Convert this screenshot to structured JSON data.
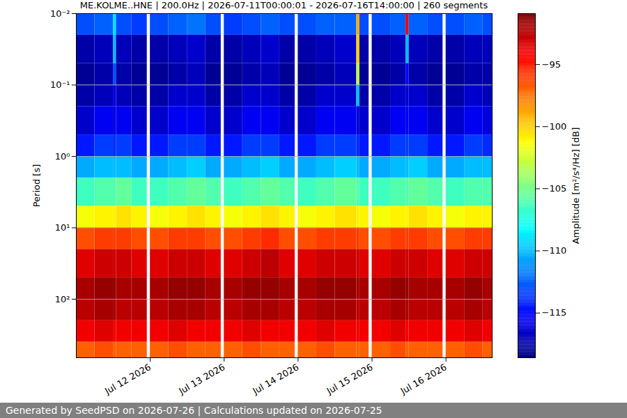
{
  "chart_data": {
    "type": "heatmap",
    "title": "ME.KOLME..HNE | 200.0Hz | 2026-07-11T00:00:01 - 2026-07-16T14:00:00 | 260 segments",
    "ylabel": "Period [s]",
    "x_edges": [
      "2026-07-11T00:00",
      "2026-07-11T06:00",
      "2026-07-11T12:00",
      "2026-07-11T13:00",
      "2026-07-11T18:00",
      "2026-07-11T23:00",
      "2026-07-12T00:00",
      "2026-07-12T06:00",
      "2026-07-12T12:00",
      "2026-07-12T18:00",
      "2026-07-12T23:00",
      "2026-07-13T00:00",
      "2026-07-13T06:00",
      "2026-07-13T12:00",
      "2026-07-13T18:00",
      "2026-07-13T23:00",
      "2026-07-14T00:00",
      "2026-07-14T06:00",
      "2026-07-14T12:00",
      "2026-07-14T19:00",
      "2026-07-14T20:00",
      "2026-07-14T23:00",
      "2026-07-15T00:00",
      "2026-07-15T06:00",
      "2026-07-15T11:00",
      "2026-07-15T12:00",
      "2026-07-15T18:00",
      "2026-07-15T23:00",
      "2026-07-16T00:00",
      "2026-07-16T06:00",
      "2026-07-16T12:00",
      "2026-07-16T15:00"
    ],
    "y_edges": [
      0.01,
      0.02,
      0.05,
      0.1,
      0.2,
      0.5,
      1,
      2,
      5,
      10,
      20,
      50,
      100,
      200,
      400,
      660
    ],
    "z": [
      [
        -113,
        -112.5,
        -109,
        -113,
        -113.5,
        null,
        -113,
        -112.5,
        -112,
        -113,
        null,
        -113.5,
        -113,
        -112.5,
        -113,
        null,
        -113,
        -112.5,
        -112.5,
        -99,
        -113,
        null,
        -113,
        -112.5,
        -94,
        -112.5,
        -113,
        null,
        -113,
        -112.5,
        -113
      ],
      [
        -117.5,
        -117,
        -110,
        -117,
        -117.5,
        null,
        -117.5,
        -117,
        -116.5,
        -117.5,
        null,
        -117.5,
        -117,
        -116.5,
        -117.5,
        null,
        -117.5,
        -117,
        -116.5,
        -100,
        -117.5,
        null,
        -117.5,
        -117,
        -110,
        -117,
        -117.5,
        null,
        -117.5,
        -117,
        -117
      ],
      [
        -118,
        -117.5,
        -113,
        -117.5,
        -118,
        null,
        -118,
        -117.5,
        -117,
        -118,
        null,
        -118,
        -117.5,
        -117,
        -118,
        null,
        -118,
        -117.5,
        -117,
        -103,
        -118,
        null,
        -118,
        -117.5,
        -115,
        -117.5,
        -118,
        null,
        -118,
        -117.5,
        -117.5
      ],
      [
        -117.5,
        -117,
        -116,
        -117,
        -117.5,
        null,
        -117.5,
        -116.5,
        -116.5,
        -117.5,
        null,
        -117.5,
        -116.5,
        -116.5,
        -117.5,
        null,
        -117.5,
        -116.5,
        -116.5,
        -110,
        -117.5,
        null,
        -117.5,
        -116.5,
        -116.5,
        -116.5,
        -117.5,
        null,
        -117.5,
        -116.5,
        -117
      ],
      [
        -116.5,
        -115.5,
        -116,
        -115.5,
        -116.5,
        null,
        -116.5,
        -115.5,
        -115.5,
        -116.5,
        null,
        -116.5,
        -115.5,
        -115.5,
        -116.5,
        null,
        -116.5,
        -115.5,
        -115.5,
        -116,
        -116.5,
        null,
        -116.5,
        -115.5,
        -115.5,
        -115.5,
        -116.5,
        null,
        -116.5,
        -115.5,
        -116
      ],
      [
        -114.5,
        -113.5,
        -114,
        -113.5,
        -114.5,
        null,
        -114.5,
        -113.5,
        -113.5,
        -114.5,
        null,
        -114.5,
        -113.5,
        -113.5,
        -114.5,
        null,
        -114.5,
        -113.5,
        -113.5,
        -114,
        -114.5,
        null,
        -114.5,
        -113.5,
        -113.5,
        -113.5,
        -114.5,
        null,
        -114.5,
        -113.5,
        -114
      ],
      [
        -110.5,
        -110,
        -110,
        -110,
        -110.5,
        null,
        -110.5,
        -110,
        -109.5,
        -110.5,
        null,
        -110.5,
        -110,
        -109.5,
        -110.5,
        null,
        -110.5,
        -110,
        -109.5,
        -110,
        -110.5,
        null,
        -110.5,
        -110,
        -110,
        -109.5,
        -110.5,
        null,
        -110.5,
        -110,
        -110
      ],
      [
        -106.5,
        -106,
        -106,
        -105.5,
        -106.5,
        null,
        -106.5,
        -106,
        -105.5,
        -106,
        null,
        -106.5,
        -106,
        -105.5,
        -106,
        null,
        -106.5,
        -106,
        -105.5,
        -106,
        -106.5,
        null,
        -106.5,
        -106,
        -106,
        -105.5,
        -106,
        null,
        -106.5,
        -106,
        -106
      ],
      [
        -101.5,
        -101,
        -101,
        -100.5,
        -101,
        null,
        -101.5,
        -101,
        -100.5,
        -101,
        null,
        -101.5,
        -101,
        -100.5,
        -101,
        null,
        -101.5,
        -101,
        -100.5,
        -101,
        -101,
        null,
        -101.5,
        -101,
        -101,
        -100.5,
        -101,
        null,
        -101.5,
        -101,
        -101
      ],
      [
        -96.5,
        -96,
        -96,
        -96,
        -96.5,
        null,
        -96.5,
        -96,
        -96,
        -96.5,
        null,
        -96.5,
        -96,
        -95.5,
        -96.5,
        null,
        -96.5,
        -96,
        -96,
        -96,
        -96.5,
        null,
        -96.5,
        -96,
        -96,
        -96,
        -96.5,
        null,
        -96.5,
        -96,
        -96
      ],
      [
        -93.5,
        -93,
        -93,
        -93,
        -93.5,
        null,
        -93.5,
        -93,
        -93,
        -93.5,
        null,
        -93.5,
        -93,
        -92.5,
        -93.5,
        null,
        -93.5,
        -93,
        -93,
        -93,
        -93.5,
        null,
        -93.5,
        -93,
        -93,
        -93,
        -93.5,
        null,
        -93.5,
        -93,
        -93
      ],
      [
        -92,
        -91.5,
        -91.5,
        -92,
        -92,
        null,
        -92,
        -91.5,
        -91.5,
        -92,
        null,
        -92,
        -91.5,
        -91.5,
        -92,
        null,
        -92,
        -91.5,
        -91.5,
        -92,
        -92,
        null,
        -92,
        -91.5,
        -91.5,
        -92,
        -92,
        null,
        -92,
        -91.5,
        -92
      ],
      [
        -92.5,
        -92,
        -92,
        -92.5,
        -92.5,
        null,
        -92.5,
        -92,
        -92,
        -92.5,
        null,
        -92.5,
        -92,
        -92,
        -92.5,
        null,
        -92.5,
        -92,
        -92,
        -92.5,
        -92.5,
        null,
        -92.5,
        -92,
        -92,
        -92.5,
        -92.5,
        null,
        -92.5,
        -92,
        -92.5
      ],
      [
        -94,
        -93.5,
        -94,
        -94,
        -94,
        null,
        -94,
        -93.5,
        -94,
        -94,
        null,
        -94,
        -93.5,
        -94,
        -94,
        null,
        -94,
        -93.5,
        -94,
        -94,
        -94,
        null,
        -94,
        -93.5,
        -94,
        -94,
        -94,
        null,
        -94,
        -93.5,
        -94
      ],
      [
        -97,
        -96.5,
        -97,
        -97,
        -97,
        null,
        -97,
        -96.5,
        -97,
        -97,
        null,
        -97,
        -96.5,
        -97,
        -97,
        null,
        -97,
        -96.5,
        -97,
        -97,
        -97,
        null,
        -97,
        -96.5,
        -97,
        -97,
        -97,
        null,
        -97,
        -96.5,
        -97
      ]
    ],
    "xlim": [
      "2026-07-11T00:00",
      "2026-07-16T15:00"
    ],
    "xticks": [
      {
        "value": "2026-07-12",
        "label": "Jul 12 2026"
      },
      {
        "value": "2026-07-13",
        "label": "Jul 13 2026"
      },
      {
        "value": "2026-07-14",
        "label": "Jul 14 2026"
      },
      {
        "value": "2026-07-15",
        "label": "Jul 15 2026"
      },
      {
        "value": "2026-07-16",
        "label": "Jul 16 2026"
      }
    ],
    "ylim": [
      0.01,
      660
    ],
    "yticks": [
      {
        "value": 0.01,
        "label": "10⁻²"
      },
      {
        "value": 0.1,
        "label": "10⁻¹"
      },
      {
        "value": 1,
        "label": "10⁰"
      },
      {
        "value": 10,
        "label": "10¹"
      },
      {
        "value": 100,
        "label": "10²"
      }
    ],
    "log": "y",
    "grid": true,
    "colorbar": {
      "label": "Amplitude [m²/s⁴/Hz] [dB]",
      "range": [
        -118.6,
        -90.9
      ],
      "ticks": [
        -95,
        -100,
        -105,
        -110,
        -115
      ]
    },
    "footer": "Generated by SeedPSD on 2026-07-26 | Calculations updated on 2026-07-25"
  }
}
